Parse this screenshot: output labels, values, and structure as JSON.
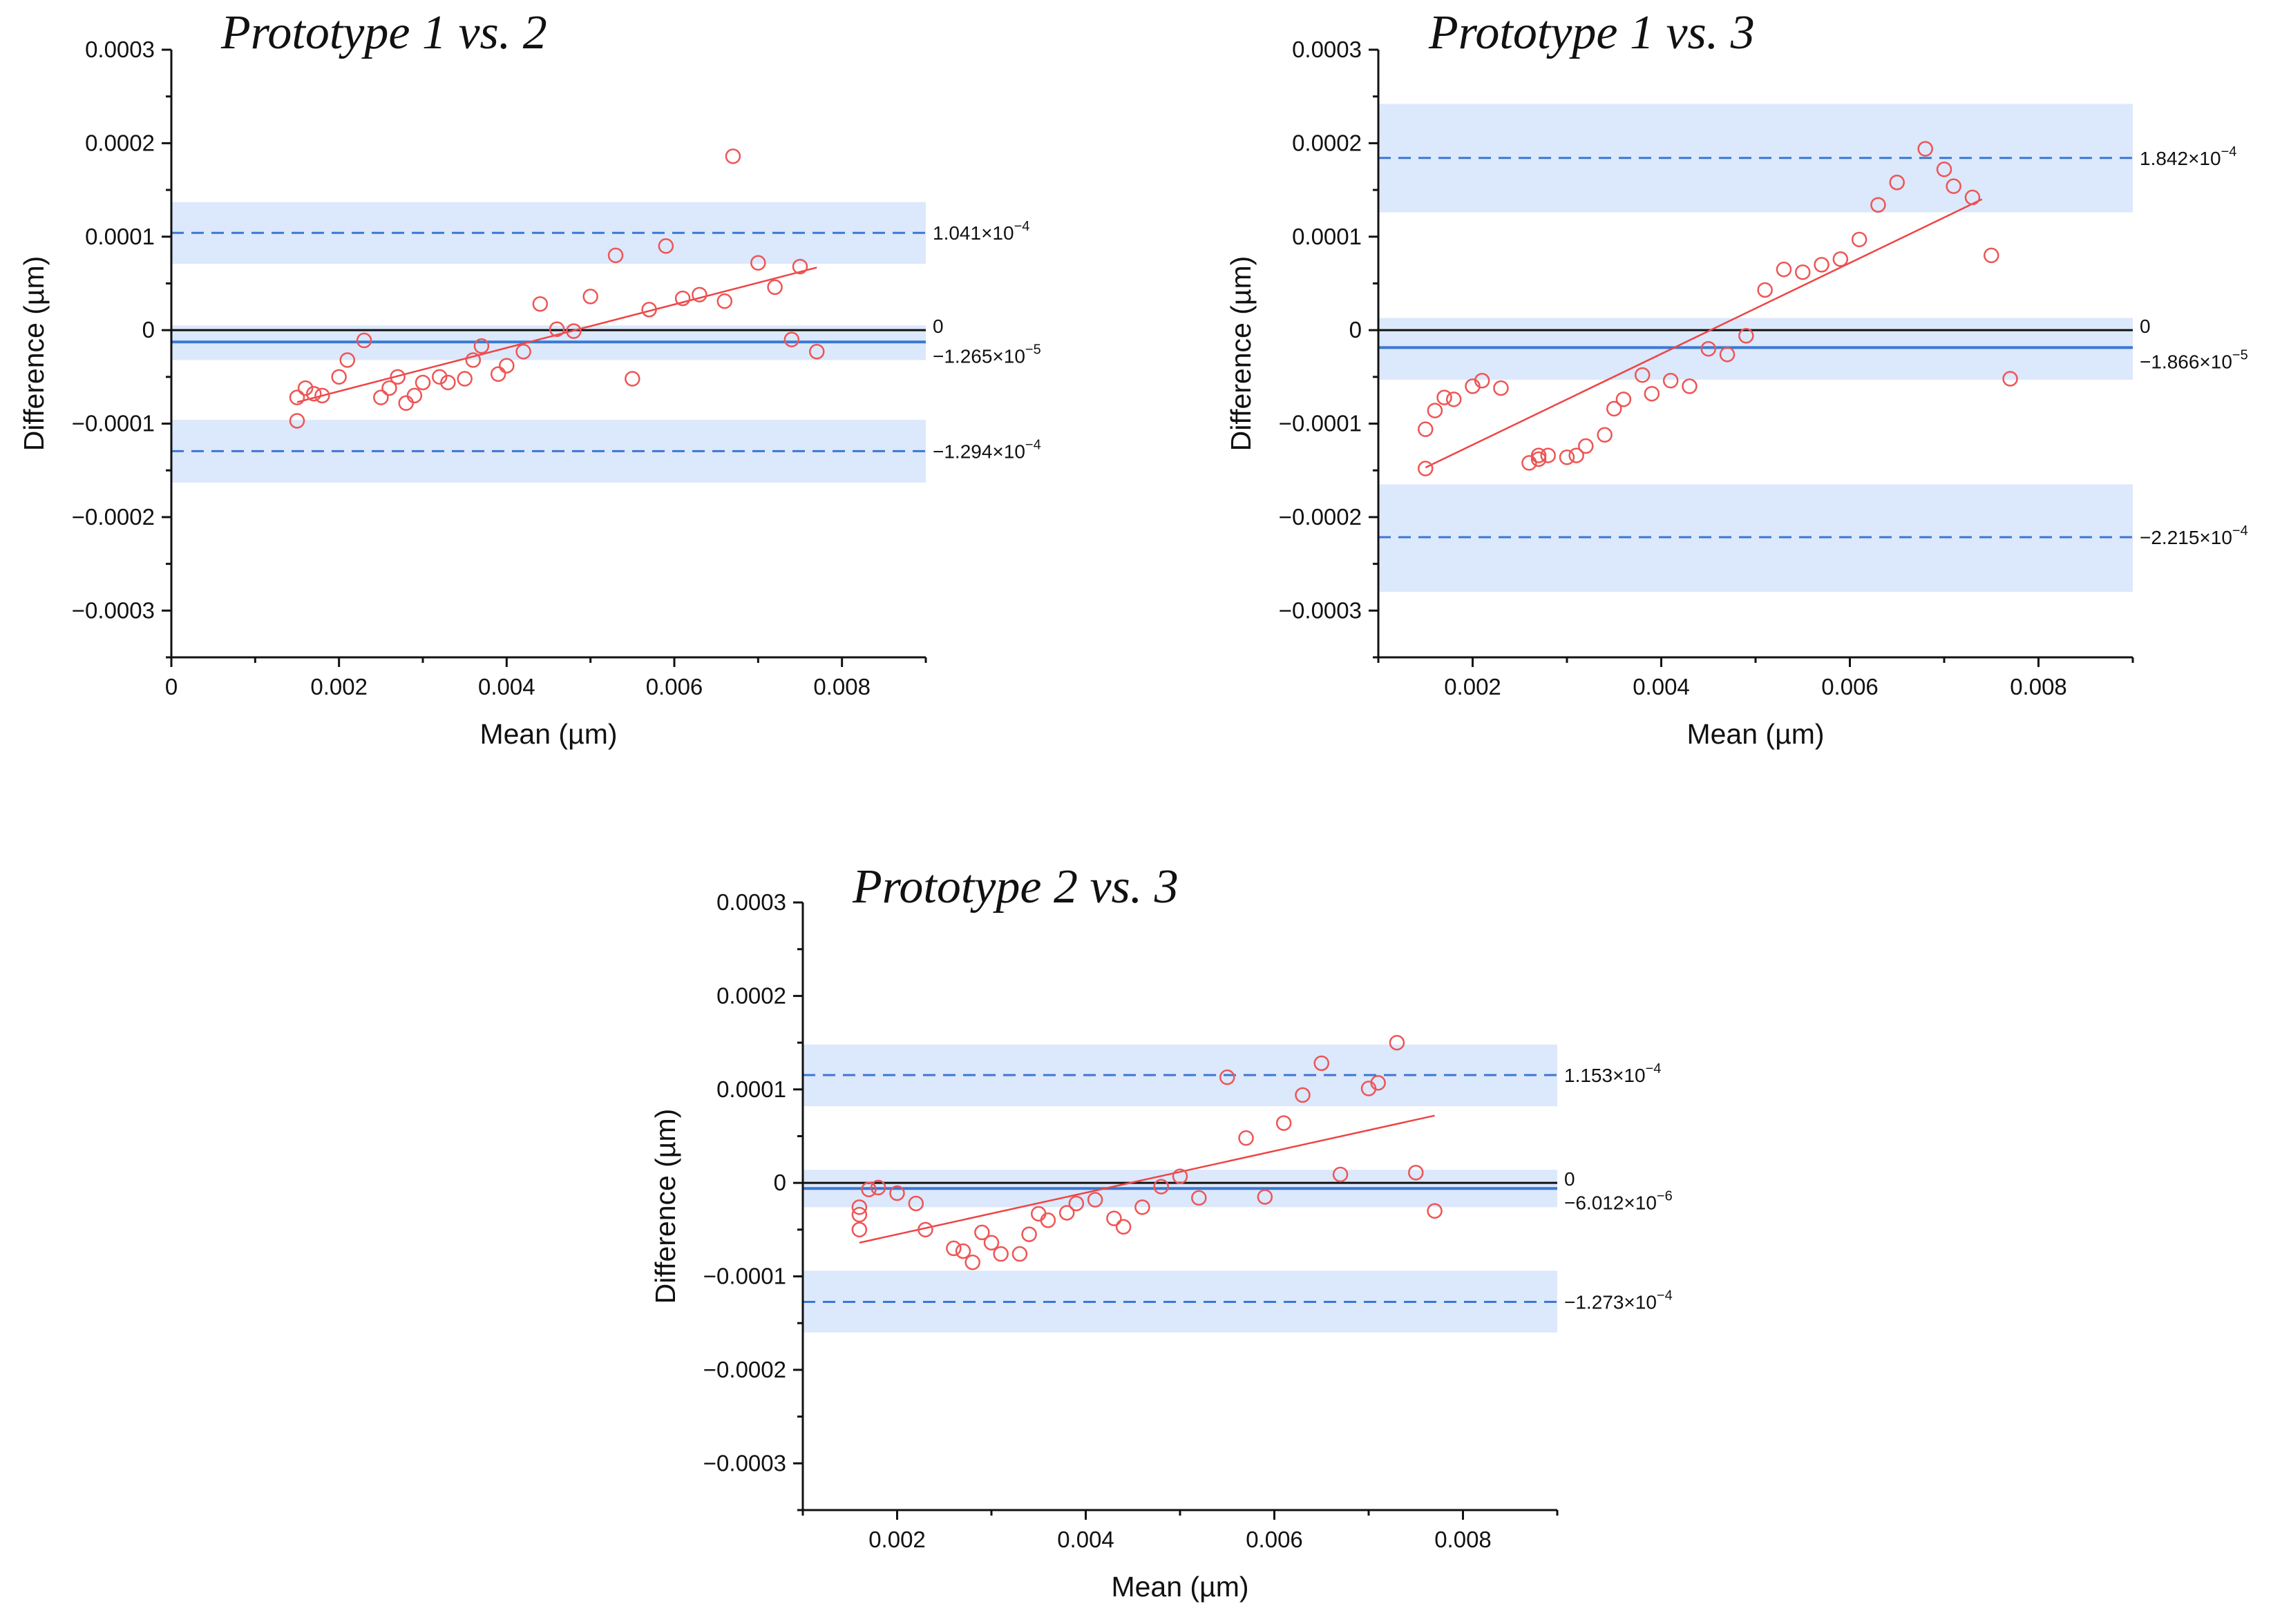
{
  "colors": {
    "band": "#dce8fb",
    "mean_line": "#3a78d4",
    "loa_line": "#3a78d4",
    "zero_line": "#111111",
    "points": "#ee5555",
    "fit": "#ee4444",
    "axis": "#111111"
  },
  "chart_data": [
    {
      "type": "scatter",
      "title": "Prototype 1 vs. 2",
      "xlabel": "Mean (µm)",
      "ylabel": "Difference (µm)",
      "xlim": [
        0,
        0.009
      ],
      "ylim": [
        -0.00035,
        0.0003
      ],
      "xticks": [
        0,
        0.002,
        0.004,
        0.006,
        0.008
      ],
      "xtick_labels": [
        "0",
        "0.002",
        "0.004",
        "0.006",
        "0.008"
      ],
      "yticks": [
        0.0003,
        0.0002,
        0.0001,
        0,
        -0.0001,
        -0.0002,
        -0.0003
      ],
      "ytick_labels": [
        "0.0003",
        "0.0002",
        "0.0001",
        "0",
        "−0.0001",
        "−0.0002",
        "−0.0003"
      ],
      "zero_label": "0",
      "mean": {
        "value": -1.265e-05,
        "label": "−1.265×10",
        "exp": "−5",
        "band": [
          -3.2e-05,
          5e-06
        ]
      },
      "upper_loa": {
        "value": 0.0001041,
        "label": "1.041×10",
        "exp": "−4",
        "band": [
          7.1e-05,
          0.000137
        ]
      },
      "lower_loa": {
        "value": -0.0001294,
        "label": "−1.294×10",
        "exp": "−4",
        "band": [
          -0.000163,
          -9.6e-05
        ]
      },
      "fit": {
        "x": [
          0.0015,
          0.0077
        ],
        "y": [
          -7.7e-05,
          6.7e-05
        ]
      },
      "points": {
        "x": [
          0.0015,
          0.0015,
          0.0016,
          0.0017,
          0.0018,
          0.002,
          0.0021,
          0.0023,
          0.0025,
          0.0026,
          0.0027,
          0.0028,
          0.0029,
          0.003,
          0.0032,
          0.0033,
          0.0035,
          0.0036,
          0.0037,
          0.0039,
          0.004,
          0.0042,
          0.0044,
          0.0046,
          0.0048,
          0.005,
          0.0053,
          0.0055,
          0.0057,
          0.0059,
          0.0061,
          0.0063,
          0.0066,
          0.0067,
          0.007,
          0.0072,
          0.0074,
          0.0075,
          0.0077
        ],
        "y": [
          -9.7e-05,
          -7.2e-05,
          -6.2e-05,
          -6.8e-05,
          -7e-05,
          -5e-05,
          -3.2e-05,
          -1.1e-05,
          -7.2e-05,
          -6.2e-05,
          -5e-05,
          -7.8e-05,
          -7e-05,
          -5.6e-05,
          -5e-05,
          -5.6e-05,
          -5.2e-05,
          -3.2e-05,
          -1.7e-05,
          -4.7e-05,
          -3.8e-05,
          -2.3e-05,
          2.8e-05,
          1e-06,
          -1e-06,
          3.6e-05,
          8e-05,
          -5.2e-05,
          2.2e-05,
          9e-05,
          3.4e-05,
          3.8e-05,
          3.1e-05,
          0.000186,
          7.2e-05,
          4.6e-05,
          -1e-05,
          6.8e-05,
          -2.3e-05
        ]
      }
    },
    {
      "type": "scatter",
      "title": "Prototype 1 vs. 3",
      "xlabel": "Mean (µm)",
      "ylabel": "Difference (µm)",
      "xlim": [
        0.001,
        0.009
      ],
      "ylim": [
        -0.00035,
        0.0003
      ],
      "xticks": [
        0.002,
        0.004,
        0.006,
        0.008
      ],
      "xtick_labels": [
        "0.002",
        "0.004",
        "0.006",
        "0.008"
      ],
      "yticks": [
        0.0003,
        0.0002,
        0.0001,
        0,
        -0.0001,
        -0.0002,
        -0.0003
      ],
      "ytick_labels": [
        "0.0003",
        "0.0002",
        "0.0001",
        "0",
        "−0.0001",
        "−0.0002",
        "−0.0003"
      ],
      "zero_label": "0",
      "mean": {
        "value": -1.866e-05,
        "label": "−1.866×10",
        "exp": "−5",
        "band": [
          -5.3e-05,
          1.3e-05
        ]
      },
      "upper_loa": {
        "value": 0.0001842,
        "label": "1.842×10",
        "exp": "−4",
        "band": [
          0.000126,
          0.000242
        ]
      },
      "lower_loa": {
        "value": -0.0002215,
        "label": "−2.215×10",
        "exp": "−4",
        "band": [
          -0.00028,
          -0.000165
        ]
      },
      "fit": {
        "x": [
          0.0015,
          0.0074
        ],
        "y": [
          -0.000147,
          0.00014
        ]
      },
      "points": {
        "x": [
          0.0015,
          0.0015,
          0.0016,
          0.0017,
          0.0018,
          0.002,
          0.0021,
          0.0023,
          0.0026,
          0.0027,
          0.0027,
          0.0028,
          0.003,
          0.0031,
          0.0032,
          0.0034,
          0.0035,
          0.0036,
          0.0038,
          0.0039,
          0.0041,
          0.0043,
          0.0045,
          0.0047,
          0.0049,
          0.0051,
          0.0053,
          0.0055,
          0.0057,
          0.0059,
          0.0061,
          0.0063,
          0.0065,
          0.0068,
          0.007,
          0.0071,
          0.0073,
          0.0075,
          0.0077
        ],
        "y": [
          -0.000148,
          -0.000106,
          -8.6e-05,
          -7.2e-05,
          -7.4e-05,
          -6e-05,
          -5.4e-05,
          -6.2e-05,
          -0.000142,
          -0.000134,
          -0.000138,
          -0.000134,
          -0.000136,
          -0.000134,
          -0.000124,
          -0.000112,
          -8.4e-05,
          -7.4e-05,
          -4.8e-05,
          -6.8e-05,
          -5.4e-05,
          -6e-05,
          -2e-05,
          -2.6e-05,
          -6e-06,
          4.3e-05,
          6.5e-05,
          6.2e-05,
          7e-05,
          7.6e-05,
          9.7e-05,
          0.000134,
          0.000158,
          0.000194,
          0.000172,
          0.000154,
          0.000142,
          8e-05,
          -5.2e-05
        ]
      }
    },
    {
      "type": "scatter",
      "title": "Prototype 2 vs. 3",
      "xlabel": "Mean (µm)",
      "ylabel": "Difference (µm)",
      "xlim": [
        0.001,
        0.009
      ],
      "ylim": [
        -0.00035,
        0.0003
      ],
      "xticks": [
        0.002,
        0.004,
        0.006,
        0.008
      ],
      "xtick_labels": [
        "0.002",
        "0.004",
        "0.006",
        "0.008"
      ],
      "yticks": [
        0.0003,
        0.0002,
        0.0001,
        0,
        -0.0001,
        -0.0002,
        -0.0003
      ],
      "ytick_labels": [
        "0.0003",
        "0.0002",
        "0.0001",
        "0",
        "−0.0001",
        "−0.0002",
        "−0.0003"
      ],
      "zero_label": "0",
      "mean": {
        "value": -6.012e-06,
        "label": "−6.012×10",
        "exp": "−6",
        "band": [
          -2.6e-05,
          1.4e-05
        ]
      },
      "upper_loa": {
        "value": 0.0001153,
        "label": "1.153×10",
        "exp": "−4",
        "band": [
          8.2e-05,
          0.000148
        ]
      },
      "lower_loa": {
        "value": -0.0001273,
        "label": "−1.273×10",
        "exp": "−4",
        "band": [
          -0.00016,
          -9.4e-05
        ]
      },
      "fit": {
        "x": [
          0.0016,
          0.0077
        ],
        "y": [
          -6.4e-05,
          7.2e-05
        ]
      },
      "points": {
        "x": [
          0.0016,
          0.0016,
          0.0016,
          0.0017,
          0.0018,
          0.002,
          0.0022,
          0.0023,
          0.0026,
          0.0027,
          0.0028,
          0.0029,
          0.003,
          0.0031,
          0.0033,
          0.0034,
          0.0035,
          0.0036,
          0.0038,
          0.0039,
          0.0041,
          0.0043,
          0.0044,
          0.0046,
          0.0048,
          0.005,
          0.0052,
          0.0055,
          0.0057,
          0.0059,
          0.0061,
          0.0063,
          0.0065,
          0.0067,
          0.007,
          0.0071,
          0.0073,
          0.0075,
          0.0077
        ],
        "y": [
          -5e-05,
          -3.4e-05,
          -2.6e-05,
          -7e-06,
          -5e-06,
          -1.1e-05,
          -2.2e-05,
          -5e-05,
          -7e-05,
          -7.3e-05,
          -8.5e-05,
          -5.3e-05,
          -6.4e-05,
          -7.6e-05,
          -7.6e-05,
          -5.5e-05,
          -3.3e-05,
          -4e-05,
          -3.2e-05,
          -2.2e-05,
          -1.8e-05,
          -3.8e-05,
          -4.7e-05,
          -2.6e-05,
          -4e-06,
          7e-06,
          -1.6e-05,
          0.000113,
          4.8e-05,
          -1.5e-05,
          6.4e-05,
          9.4e-05,
          0.000128,
          9e-06,
          0.000101,
          0.000107,
          0.00015,
          1.1e-05,
          -3e-05
        ]
      }
    }
  ]
}
